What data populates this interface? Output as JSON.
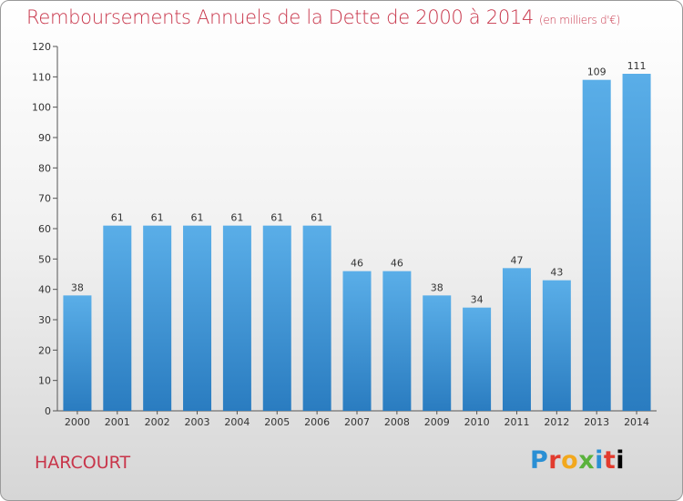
{
  "chart_data": {
    "type": "bar",
    "title": "Remboursements Annuels de la Dette de 2000 à 2014",
    "unit_note": "(en milliers d'€)",
    "categories": [
      "2000",
      "2001",
      "2002",
      "2003",
      "2004",
      "2005",
      "2006",
      "2007",
      "2008",
      "2009",
      "2010",
      "2011",
      "2012",
      "2013",
      "2014"
    ],
    "values": [
      38,
      61,
      61,
      61,
      61,
      61,
      61,
      46,
      46,
      38,
      34,
      47,
      43,
      109,
      111
    ],
    "ylim": [
      0,
      120
    ],
    "yticks": [
      0,
      10,
      20,
      30,
      40,
      50,
      60,
      70,
      80,
      90,
      100,
      110,
      120
    ],
    "grid": false,
    "bar_color_top": "#5aaee8",
    "bar_color_bottom": "#2a7cc0"
  },
  "footer": {
    "commune": "HARCOURT",
    "logo": [
      "P",
      "r",
      "o",
      "x",
      "i",
      "t",
      "i"
    ]
  }
}
